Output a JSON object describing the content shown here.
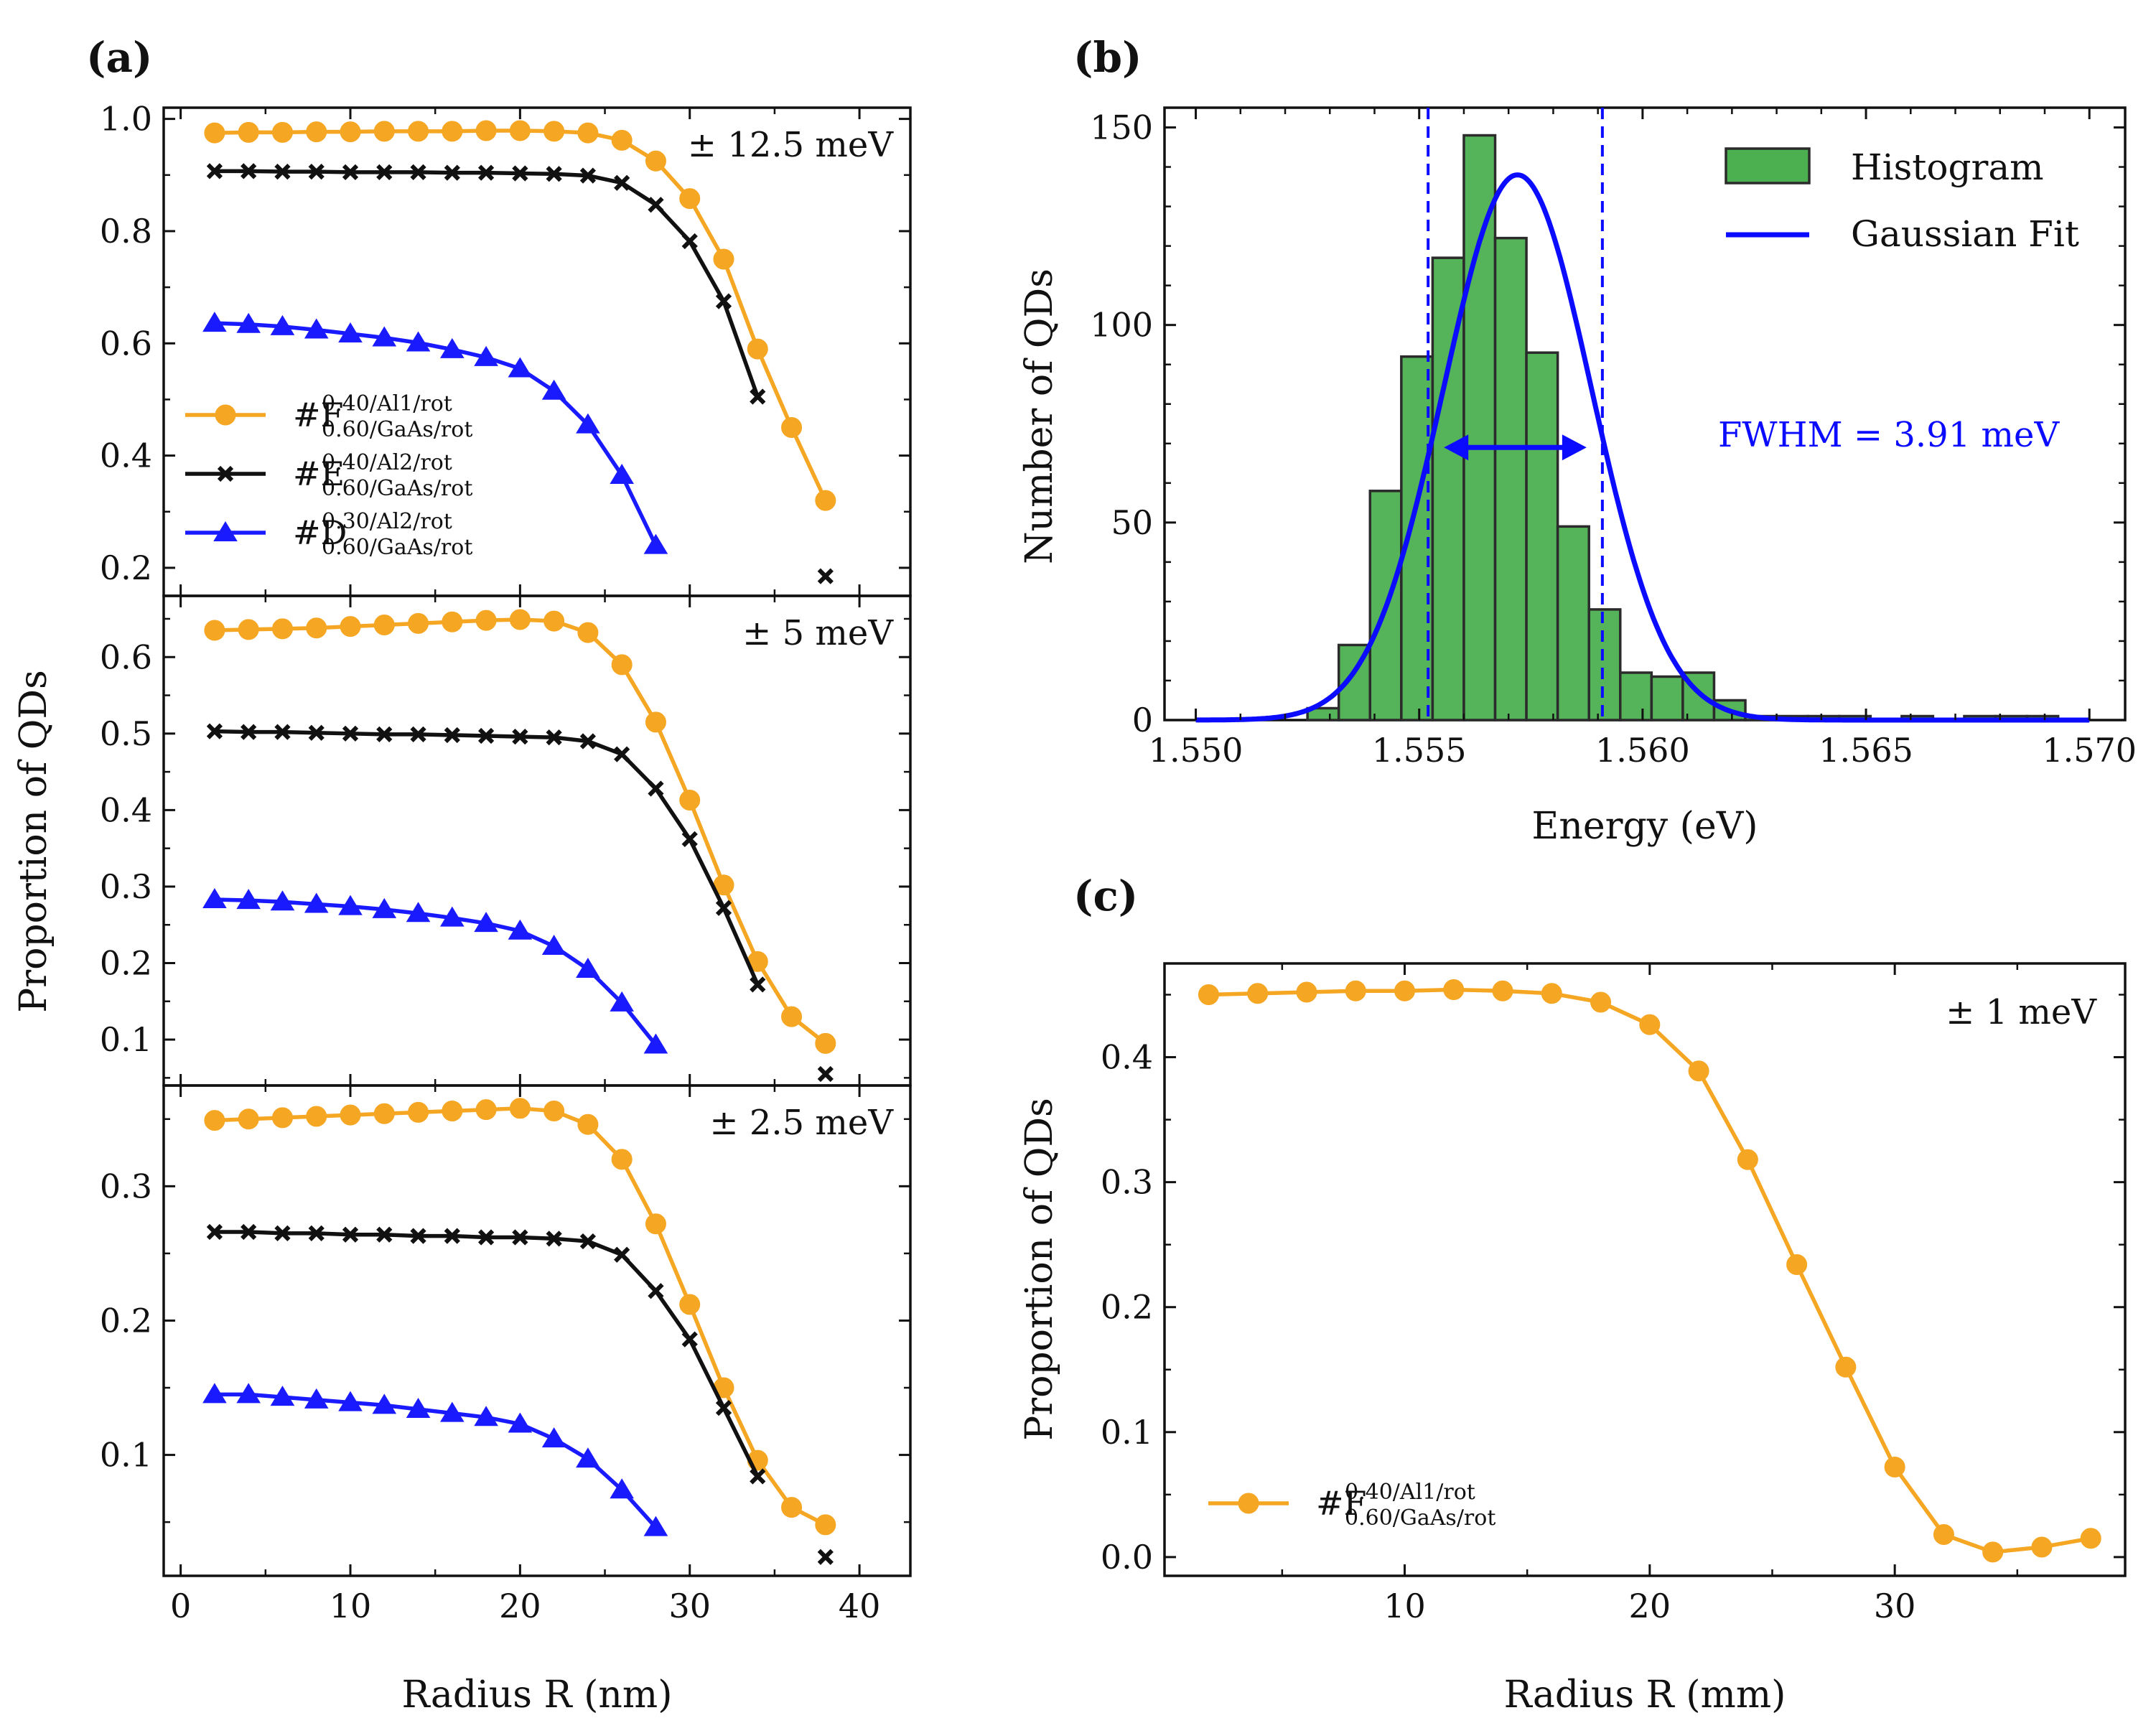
{
  "chart_data": [
    {
      "panel": "(a)",
      "type": "line",
      "xlabel": "Radius R (nm)",
      "ylabel": "Proportion of QDs",
      "xlim": [
        -1,
        43
      ],
      "xticks": [
        "0",
        "10",
        "20",
        "30",
        "40"
      ],
      "legend": [
        {
          "main": "#F",
          "sup": "0.40/Al1/rot",
          "sub": "0.60/GaAs/rot",
          "color": "#f5a623",
          "marker": "circle"
        },
        {
          "main": "#E",
          "sup": "0.40/Al2/rot",
          "sub": "0.60/GaAs/rot",
          "color": "#111111",
          "marker": "x"
        },
        {
          "main": "#D",
          "sup": "0.30/Al2/rot",
          "sub": "0.60/GaAs/rot",
          "color": "#1a1aff",
          "marker": "triangle"
        }
      ],
      "subplots": [
        {
          "annotation": "± 12.5 meV",
          "ylim": [
            0.15,
            1.02
          ],
          "yticks": [
            "0.2",
            "0.4",
            "0.6",
            "0.8",
            "1.0"
          ],
          "series": [
            {
              "name": "F",
              "color": "#f5a623",
              "marker": "circle",
              "x": [
                2,
                4,
                6,
                8,
                10,
                12,
                14,
                16,
                18,
                20,
                22,
                24,
                26,
                28,
                30,
                32,
                34,
                36,
                38
              ],
              "y": [
                0.975,
                0.976,
                0.976,
                0.977,
                0.977,
                0.978,
                0.978,
                0.978,
                0.979,
                0.979,
                0.978,
                0.975,
                0.962,
                0.925,
                0.858,
                0.75,
                0.59,
                0.45,
                0.32
              ]
            },
            {
              "name": "E",
              "color": "#111111",
              "marker": "x",
              "x": [
                2,
                4,
                6,
                8,
                10,
                12,
                14,
                16,
                18,
                20,
                22,
                24,
                26,
                28,
                30,
                32,
                34
              ],
              "y": [
                0.907,
                0.907,
                0.906,
                0.906,
                0.905,
                0.905,
                0.905,
                0.904,
                0.904,
                0.903,
                0.902,
                0.899,
                0.886,
                0.847,
                0.782,
                0.675,
                0.505
              ],
              "outlier": {
                "x": 38,
                "y": 0.185
              }
            },
            {
              "name": "D",
              "color": "#1a1aff",
              "marker": "triangle",
              "x": [
                2,
                4,
                6,
                8,
                10,
                12,
                14,
                16,
                18,
                20,
                22,
                24,
                26,
                28
              ],
              "y": [
                0.636,
                0.634,
                0.63,
                0.624,
                0.617,
                0.61,
                0.601,
                0.589,
                0.575,
                0.555,
                0.515,
                0.455,
                0.365,
                0.24
              ]
            }
          ]
        },
        {
          "annotation": "± 5 meV",
          "ylim": [
            0.04,
            0.68
          ],
          "yticks": [
            "0.1",
            "0.2",
            "0.3",
            "0.4",
            "0.5",
            "0.6"
          ],
          "series": [
            {
              "name": "F",
              "color": "#f5a623",
              "marker": "circle",
              "x": [
                2,
                4,
                6,
                8,
                10,
                12,
                14,
                16,
                18,
                20,
                22,
                24,
                26,
                28,
                30,
                32,
                34,
                36,
                38
              ],
              "y": [
                0.635,
                0.636,
                0.637,
                0.638,
                0.64,
                0.642,
                0.644,
                0.646,
                0.648,
                0.649,
                0.647,
                0.632,
                0.59,
                0.515,
                0.413,
                0.302,
                0.202,
                0.13,
                0.095
              ]
            },
            {
              "name": "E",
              "color": "#111111",
              "marker": "x",
              "x": [
                2,
                4,
                6,
                8,
                10,
                12,
                14,
                16,
                18,
                20,
                22,
                24,
                26,
                28,
                30,
                32,
                34
              ],
              "y": [
                0.503,
                0.502,
                0.502,
                0.501,
                0.5,
                0.499,
                0.499,
                0.498,
                0.497,
                0.496,
                0.495,
                0.49,
                0.473,
                0.428,
                0.362,
                0.272,
                0.172
              ],
              "outlier": {
                "x": 38,
                "y": 0.055
              }
            },
            {
              "name": "D",
              "color": "#1a1aff",
              "marker": "triangle",
              "x": [
                2,
                4,
                6,
                8,
                10,
                12,
                14,
                16,
                18,
                20,
                22,
                24,
                26,
                28
              ],
              "y": [
                0.283,
                0.282,
                0.28,
                0.277,
                0.274,
                0.27,
                0.265,
                0.259,
                0.252,
                0.242,
                0.222,
                0.192,
                0.148,
                0.093
              ]
            }
          ]
        },
        {
          "annotation": "± 2.5 meV",
          "ylim": [
            0.01,
            0.375
          ],
          "yticks": [
            "0.1",
            "0.2",
            "0.3"
          ],
          "series": [
            {
              "name": "F",
              "color": "#f5a623",
              "marker": "circle",
              "x": [
                2,
                4,
                6,
                8,
                10,
                12,
                14,
                16,
                18,
                20,
                22,
                24,
                26,
                28,
                30,
                32,
                34,
                36,
                38
              ],
              "y": [
                0.349,
                0.35,
                0.351,
                0.352,
                0.353,
                0.354,
                0.355,
                0.356,
                0.357,
                0.358,
                0.356,
                0.346,
                0.32,
                0.272,
                0.212,
                0.15,
                0.096,
                0.061,
                0.048
              ]
            },
            {
              "name": "E",
              "color": "#111111",
              "marker": "x",
              "x": [
                2,
                4,
                6,
                8,
                10,
                12,
                14,
                16,
                18,
                20,
                22,
                24,
                26,
                28,
                30,
                32,
                34
              ],
              "y": [
                0.266,
                0.266,
                0.265,
                0.265,
                0.264,
                0.264,
                0.263,
                0.263,
                0.262,
                0.262,
                0.261,
                0.259,
                0.249,
                0.222,
                0.186,
                0.135,
                0.084
              ],
              "outlier": {
                "x": 38,
                "y": 0.024
              }
            },
            {
              "name": "D",
              "color": "#1a1aff",
              "marker": "triangle",
              "x": [
                2,
                4,
                6,
                8,
                10,
                12,
                14,
                16,
                18,
                20,
                22,
                24,
                26,
                28
              ],
              "y": [
                0.145,
                0.145,
                0.143,
                0.141,
                0.139,
                0.137,
                0.134,
                0.131,
                0.128,
                0.123,
                0.112,
                0.097,
                0.074,
                0.046
              ]
            }
          ]
        }
      ]
    },
    {
      "panel": "(b)",
      "type": "bar",
      "xlabel": "Energy (eV)",
      "ylabel": "Number of QDs",
      "xlim": [
        1.5493,
        1.5708
      ],
      "ylim": [
        0,
        155
      ],
      "xticks": [
        "1.550",
        "1.555",
        "1.560",
        "1.565",
        "1.570"
      ],
      "yticks": [
        "0",
        "50",
        "100",
        "150"
      ],
      "histogram": {
        "label": "Histogram",
        "color": "#4caf50",
        "bin_start": 1.5525,
        "bin_width": 0.0007,
        "counts": [
          3,
          19,
          58,
          92,
          117,
          148,
          122,
          93,
          49,
          28,
          12,
          11,
          12,
          5,
          1,
          1,
          1,
          1,
          0,
          1,
          0,
          1,
          1,
          1
        ]
      },
      "gaussian_fit": {
        "label": "Gaussian Fit",
        "color": "#0b0bff",
        "amplitude": 138,
        "center": 1.5572,
        "fwhm": 0.00391
      },
      "fwhm_lines": [
        1.5552,
        1.5591
      ],
      "fwhm_text": "FWHM = 3.91 meV"
    },
    {
      "panel": "(c)",
      "type": "line",
      "xlabel": "Radius R (mm)",
      "ylabel": "Proportion of QDs",
      "annotation": "± 1 meV",
      "xlim": [
        0.2,
        39.4
      ],
      "ylim": [
        -0.015,
        0.475
      ],
      "xticks": [
        "10",
        "20",
        "30"
      ],
      "yticks": [
        "0.0",
        "0.1",
        "0.2",
        "0.3",
        "0.4"
      ],
      "legend": [
        {
          "main": "#F",
          "sup": "0.40/Al1/rot",
          "sub": "0.60/GaAs/rot",
          "color": "#f5a623",
          "marker": "circle"
        }
      ],
      "series": [
        {
          "name": "F",
          "color": "#f5a623",
          "marker": "circle",
          "x": [
            2,
            4,
            6,
            8,
            10,
            12,
            14,
            16,
            18,
            20,
            22,
            24,
            26,
            28,
            30,
            32,
            34,
            36,
            38
          ],
          "y": [
            0.45,
            0.451,
            0.452,
            0.453,
            0.453,
            0.454,
            0.453,
            0.451,
            0.444,
            0.426,
            0.389,
            0.318,
            0.234,
            0.152,
            0.072,
            0.018,
            0.004,
            0.008,
            0.015
          ]
        }
      ]
    }
  ]
}
